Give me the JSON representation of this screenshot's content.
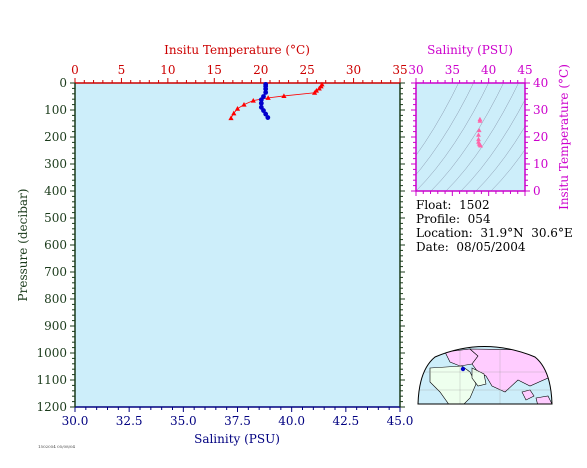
{
  "chart_data": [
    {
      "type": "scatter",
      "top_axis": {
        "label": "Insitu Temperature (°C)",
        "range": [
          0,
          35
        ],
        "ticks": [
          "0",
          "5",
          "10",
          "15",
          "20",
          "25",
          "30",
          "35"
        ],
        "color": "#cc0000"
      },
      "bottom_axis": {
        "label": "Salinity (PSU)",
        "range": [
          30.0,
          45.0
        ],
        "ticks": [
          "30.0",
          "32.5",
          "35.0",
          "37.5",
          "40.0",
          "42.5",
          "45.0"
        ],
        "color": "#000080"
      },
      "y_axis": {
        "label": "Pressure (decibar)",
        "range": [
          0,
          1200
        ],
        "ticks": [
          "0",
          "100",
          "200",
          "300",
          "400",
          "500",
          "600",
          "700",
          "800",
          "900",
          "1000",
          "1100",
          "1200"
        ],
        "color": "#1a3a1a",
        "inverted": true
      },
      "background": "#cdeefa",
      "series": [
        {
          "axis": "temperature",
          "marker": "triangle",
          "color": "#ff0000",
          "points": [
            {
              "x": 26.6,
              "y": 5
            },
            {
              "x": 26.5,
              "y": 12
            },
            {
              "x": 26.3,
              "y": 20
            },
            {
              "x": 26.0,
              "y": 28
            },
            {
              "x": 25.8,
              "y": 36
            },
            {
              "x": 22.5,
              "y": 48
            },
            {
              "x": 20.8,
              "y": 55
            },
            {
              "x": 19.2,
              "y": 65
            },
            {
              "x": 18.2,
              "y": 80
            },
            {
              "x": 17.5,
              "y": 95
            },
            {
              "x": 17.1,
              "y": 112
            },
            {
              "x": 16.8,
              "y": 130
            }
          ]
        },
        {
          "axis": "salinity",
          "marker": "circle",
          "color": "#0000cc",
          "points": [
            {
              "x": 38.8,
              "y": 5
            },
            {
              "x": 38.8,
              "y": 12
            },
            {
              "x": 38.8,
              "y": 22
            },
            {
              "x": 38.8,
              "y": 35
            },
            {
              "x": 38.7,
              "y": 50
            },
            {
              "x": 38.6,
              "y": 62
            },
            {
              "x": 38.6,
              "y": 75
            },
            {
              "x": 38.6,
              "y": 90
            },
            {
              "x": 38.7,
              "y": 102
            },
            {
              "x": 38.8,
              "y": 115
            },
            {
              "x": 38.9,
              "y": 128
            }
          ]
        }
      ]
    },
    {
      "type": "scatter",
      "x_axis": {
        "label": "Salinity (PSU)",
        "range": [
          30,
          45
        ],
        "ticks": [
          "30",
          "35",
          "40",
          "45"
        ],
        "color": "#cc00cc"
      },
      "y_axis": {
        "label": "Insitu Temperature (°C)",
        "range": [
          0,
          40
        ],
        "ticks": [
          "0",
          "10",
          "20",
          "30",
          "40"
        ],
        "color": "#cc00cc"
      },
      "background": "#cdeefa",
      "series": [
        {
          "marker": "triangle",
          "color": "#ff66aa",
          "points": [
            {
              "x": 38.8,
              "y": 26.6
            },
            {
              "x": 38.8,
              "y": 26.0
            },
            {
              "x": 38.7,
              "y": 22.5
            },
            {
              "x": 38.6,
              "y": 20.8
            },
            {
              "x": 38.6,
              "y": 19.2
            },
            {
              "x": 38.6,
              "y": 18.2
            },
            {
              "x": 38.7,
              "y": 17.5
            },
            {
              "x": 38.8,
              "y": 17.1
            },
            {
              "x": 38.9,
              "y": 16.8
            }
          ]
        }
      ]
    }
  ],
  "info": {
    "float_label": "Float:",
    "float_value": "1502",
    "profile_label": "Profile:",
    "profile_value": "054",
    "location_label": "Location:",
    "location_value": "31.9°N  30.6°E",
    "date_label": "Date:",
    "date_value": "08/05/2004"
  },
  "footer_text": "1502054 05/08/04"
}
